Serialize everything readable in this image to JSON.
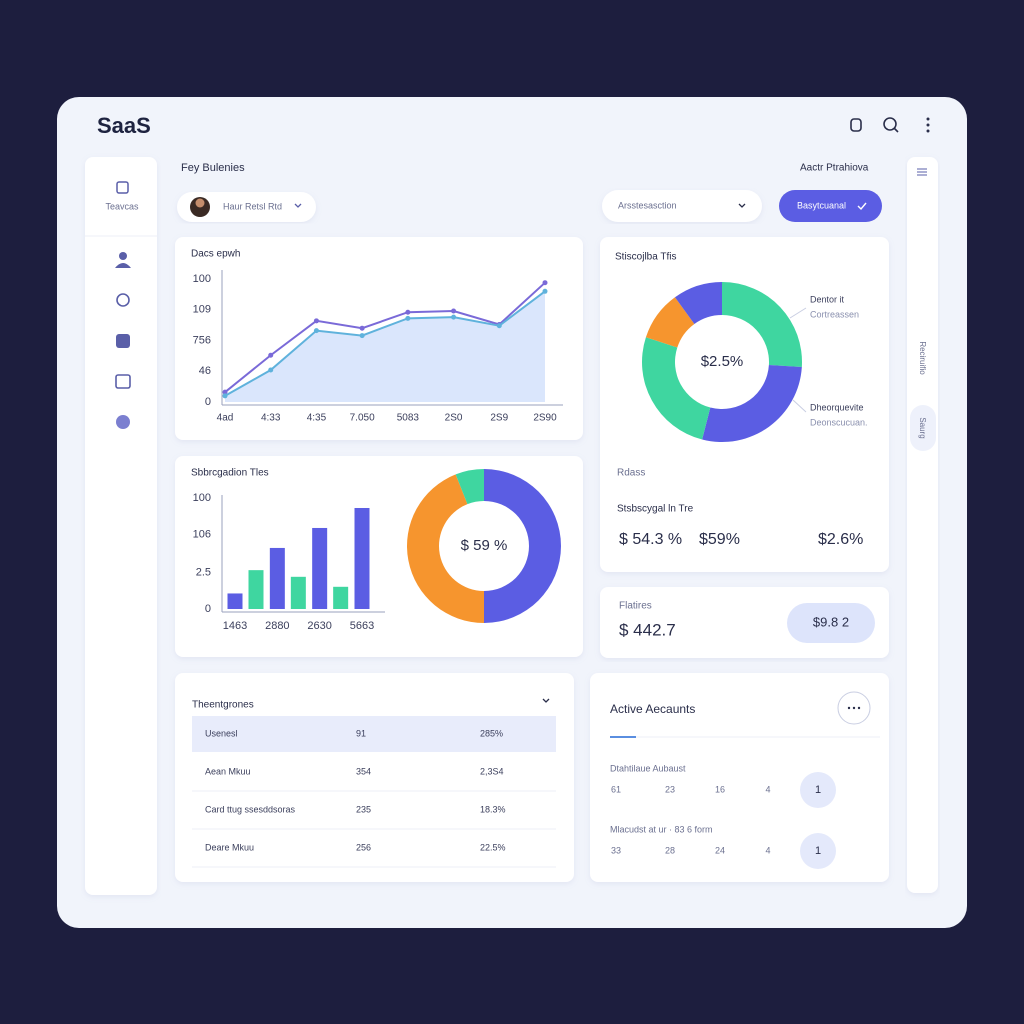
{
  "brand": "SaaS",
  "heading": "Fey Bulenies",
  "heading_right": "Aactr Ptrahiova",
  "sidebar": {
    "label": "Teavcas"
  },
  "profile": "Haur Retsl Rtd",
  "dropdown": "Arsstesasction",
  "button": "Basytcuanal",
  "side_tabs": [
    "Reciruifio",
    "Saurg"
  ],
  "chart_data": [
    {
      "type": "line",
      "title": "Dacs epwh",
      "categories": [
        "4ad",
        "4:33",
        "4:35",
        "7.050",
        "5083",
        "2S0",
        "2S9",
        "2S90"
      ],
      "ylim": [
        0,
        100
      ],
      "yticks": [
        100,
        {
          "value": 75,
          "label": "109"
        },
        {
          "value": 50,
          "label": "756"
        },
        {
          "value": 25,
          "label": "46"
        },
        0
      ],
      "series": [
        {
          "color": "#7a6ad8",
          "values": [
            8,
            38,
            66,
            60,
            73,
            74,
            63,
            97
          ]
        },
        {
          "color": "#5fb2dc",
          "area_color": "#d3e2fb",
          "values": [
            5,
            26,
            58,
            54,
            68,
            69,
            62,
            90
          ]
        }
      ]
    },
    {
      "type": "bar",
      "title": "Sbbrcgadion Tles",
      "categories": [
        "1463",
        "2880",
        "2630",
        "5663"
      ],
      "ylim": [
        0,
        100
      ],
      "yticks": [
        100,
        {
          "value": 67,
          "label": "106"
        },
        {
          "value": 33,
          "label": "2.5"
        },
        0
      ],
      "series": [
        {
          "color": "#5b5de3",
          "values": [
            14,
            55,
            73,
            91
          ]
        },
        {
          "color": "#3fd6a0",
          "values": [
            35,
            29,
            20,
            null
          ]
        }
      ],
      "donut": {
        "values": [
          50,
          44,
          6
        ],
        "colors": [
          "#5b5de3",
          "#f6952e",
          "#3fd6a0"
        ],
        "center_label": "$ 59 %"
      }
    },
    {
      "type": "pie",
      "title": "Stiscojlba Tfis",
      "values": [
        26,
        28,
        26,
        10,
        10
      ],
      "colors": [
        "#3fd6a0",
        "#5b5de3",
        "#3fd6a0",
        "#f6952e",
        "#5b5de3"
      ],
      "center_label": "$2.5%",
      "annotations": [
        "Dentor it",
        "Cortreassen",
        "Dheorquevite",
        "Deonscucuan."
      ]
    }
  ],
  "stats": {
    "label": "Rdass",
    "subtitle": "Stsbscygal ln Tre",
    "values": [
      "$ 54.3 %",
      "$59%",
      "$2.6%"
    ]
  },
  "feature": {
    "label": "Flatires",
    "value": "$ 442.7",
    "pill": "$9.8 2"
  },
  "table": {
    "title": "Theentgrones",
    "rows": [
      [
        "Usenesl",
        "91",
        "285%"
      ],
      [
        "Aean Mkuu",
        "354",
        "2,3S4"
      ],
      [
        "Card ttug ssesddsoras",
        "235",
        "18.3%"
      ],
      [
        "Deare Mkuu",
        "256",
        "22.5%"
      ]
    ]
  },
  "accounts": {
    "title": "Active Aecaunts",
    "rows": [
      {
        "label": "Dtahtilaue Aubaust",
        "cells": [
          "61",
          "23",
          "16",
          "4"
        ],
        "badge": "1"
      },
      {
        "label": "Mlacudst at ur · 83 6 form",
        "cells": [
          "33",
          "28",
          "24",
          "4"
        ],
        "badge": "1"
      }
    ]
  }
}
